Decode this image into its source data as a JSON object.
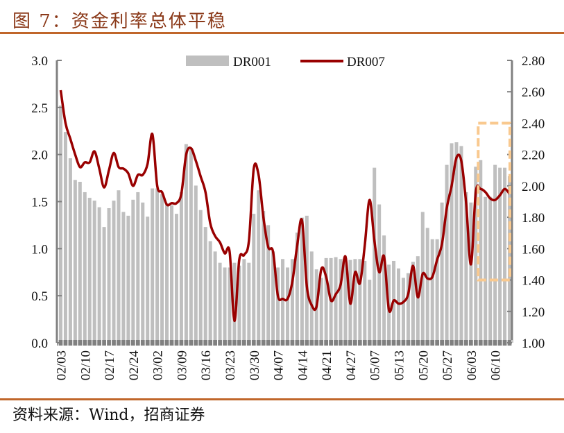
{
  "title": "图 7：资金利率总体平稳",
  "source": "资料来源：Wind，招商证券",
  "colors": {
    "bar": "#bfbfbf",
    "line": "#990000",
    "axis": "#808080",
    "highlight_box": "#f9c98f",
    "title": "#8b3a1a",
    "rule": "#c0662a"
  },
  "chart_data": {
    "type": "bar+line",
    "legend": [
      "DR001",
      "DR007"
    ],
    "legend_placement": "top-center",
    "x_tick_labels": [
      "02/03",
      "02/10",
      "02/17",
      "02/24",
      "03/02",
      "03/09",
      "03/16",
      "03/23",
      "03/30",
      "04/07",
      "04/14",
      "04/21",
      "04/27",
      "05/07",
      "05/13",
      "05/20",
      "05/27",
      "06/03",
      "06/10"
    ],
    "left_axis": {
      "range": [
        0,
        3.0
      ],
      "ticks": [
        "0.0",
        "0.5",
        "1.0",
        "1.5",
        "2.0",
        "2.5",
        "3.0"
      ]
    },
    "right_axis": {
      "range": [
        1.0,
        2.8
      ],
      "ticks": [
        "1.00",
        "1.20",
        "1.40",
        "1.60",
        "1.80",
        "2.00",
        "2.20",
        "2.40",
        "2.60",
        "2.80"
      ]
    },
    "series": [
      {
        "name": "DR001",
        "type": "bar",
        "axis": "left",
        "values": [
          2.52,
          2.24,
          1.96,
          1.73,
          1.71,
          1.6,
          1.54,
          1.51,
          1.44,
          1.23,
          1.43,
          1.51,
          1.62,
          1.39,
          1.35,
          1.52,
          1.6,
          1.49,
          1.34,
          1.64,
          1.64,
          1.58,
          1.48,
          1.46,
          1.37,
          1.6,
          2.11,
          2.07,
          1.67,
          1.41,
          1.23,
          1.08,
          0.97,
          0.85,
          0.8,
          0.8,
          0.85,
          0.82,
          0.89,
          0.85,
          1.37,
          1.62,
          1.4,
          1.25,
          0.97,
          0.8,
          0.89,
          0.8,
          0.89,
          1.17,
          1.33,
          1.35,
          0.97,
          0.78,
          0.69,
          0.9,
          0.9,
          0.91,
          0.89,
          0.9,
          0.88,
          0.89,
          0.89,
          0.87,
          0.67,
          1.86,
          1.47,
          1.14,
          0.83,
          0.87,
          0.79,
          0.69,
          0.74,
          0.86,
          0.92,
          1.39,
          1.22,
          1.1,
          1.1,
          1.49,
          1.89,
          2.12,
          2.13,
          2.09,
          1.6,
          1.49,
          1.87,
          1.94,
          1.55,
          1.55,
          1.89,
          1.86,
          1.86,
          1.77
        ]
      },
      {
        "name": "DR007",
        "type": "line",
        "axis": "right",
        "values": [
          2.61,
          2.4,
          2.3,
          2.2,
          2.12,
          2.15,
          2.15,
          2.22,
          2.11,
          1.99,
          2.1,
          2.21,
          2.12,
          2.11,
          2.08,
          2.0,
          2.07,
          2.07,
          2.14,
          2.33,
          2.0,
          1.96,
          1.88,
          1.89,
          1.89,
          1.95,
          2.2,
          2.24,
          2.16,
          2.06,
          1.96,
          1.76,
          1.68,
          1.64,
          1.57,
          1.58,
          1.14,
          1.53,
          1.56,
          1.65,
          2.11,
          2.07,
          1.8,
          1.61,
          1.58,
          1.3,
          1.28,
          1.28,
          1.39,
          1.62,
          1.78,
          1.36,
          1.24,
          1.23,
          1.47,
          1.42,
          1.27,
          1.31,
          1.37,
          1.55,
          1.25,
          1.45,
          1.38,
          1.62,
          1.91,
          1.65,
          1.45,
          1.55,
          1.21,
          1.27,
          1.25,
          1.26,
          1.31,
          1.49,
          1.29,
          1.44,
          1.41,
          1.42,
          1.53,
          1.63,
          1.86,
          2.0,
          2.18,
          2.16,
          1.89,
          1.5,
          1.96,
          1.98,
          1.96,
          1.92,
          1.91,
          1.94,
          1.98,
          1.95
        ]
      }
    ],
    "annotation": "dashed highlight box over the last bars (06/03–06/10)"
  }
}
